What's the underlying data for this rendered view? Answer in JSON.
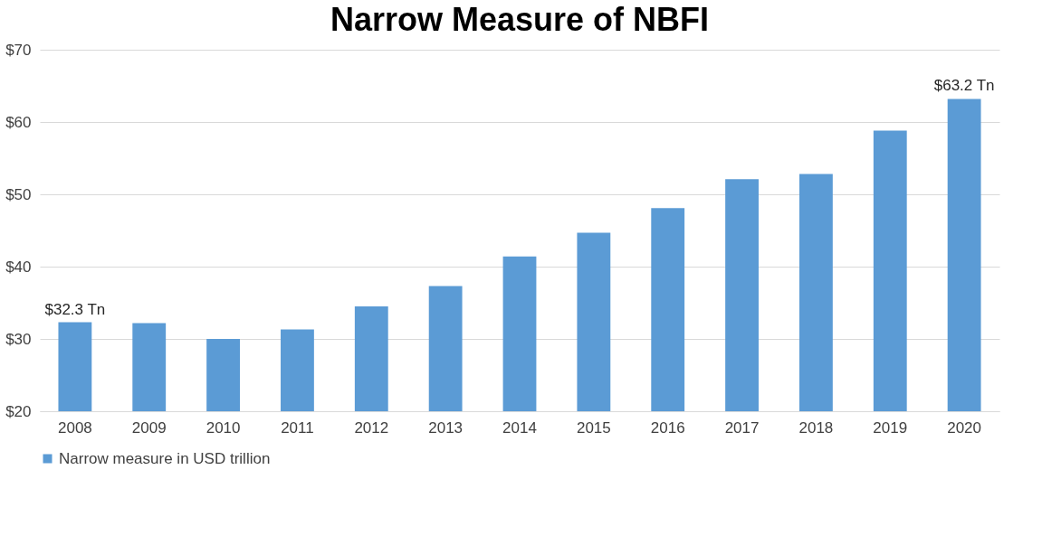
{
  "chart_data": {
    "type": "bar",
    "title": "Narrow Measure of NBFI",
    "categories": [
      "2008",
      "2009",
      "2010",
      "2011",
      "2012",
      "2013",
      "2014",
      "2015",
      "2016",
      "2017",
      "2018",
      "2019",
      "2020"
    ],
    "series": [
      {
        "name": "Narrow measure in USD trillion",
        "color": "#5b9bd5",
        "values": [
          32.3,
          32.2,
          30.0,
          31.3,
          34.5,
          37.3,
          41.4,
          44.7,
          48.1,
          52.1,
          52.8,
          58.8,
          63.2
        ],
        "value_labels": [
          "$32.3 Tn",
          null,
          null,
          null,
          null,
          null,
          null,
          null,
          null,
          null,
          null,
          null,
          "$63.2 Tn"
        ]
      }
    ],
    "ylim": [
      20,
      70
    ],
    "yticks": [
      {
        "value": 20,
        "label": "$20"
      },
      {
        "value": 30,
        "label": "$30"
      },
      {
        "value": 40,
        "label": "$40"
      },
      {
        "value": 50,
        "label": "$50"
      },
      {
        "value": 60,
        "label": "$60"
      },
      {
        "value": 70,
        "label": "$70"
      }
    ],
    "grid": "y",
    "legend": "bottom"
  }
}
